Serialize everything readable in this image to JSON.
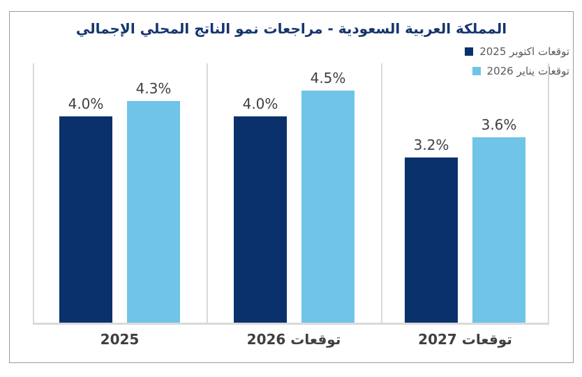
{
  "chart_data": {
    "type": "bar",
    "title": "المملكة العربية السعودية - مراجعات نمو الناتج المحلي الإجمالي",
    "categories": [
      "2025",
      "توقعات 2026",
      "توقعات 2027"
    ],
    "series": [
      {
        "name": "توقعات اكتوبر 2025",
        "color": "#0A316B",
        "values": [
          4.0,
          4.0,
          3.2
        ],
        "value_labels": [
          "4.0%",
          "4.0%",
          "3.2%"
        ]
      },
      {
        "name": "توقعات يناير 2026",
        "color": "#6FC4E8",
        "values": [
          4.3,
          4.5,
          3.6
        ],
        "value_labels": [
          "4.3%",
          "4.5%",
          "3.6%"
        ]
      }
    ],
    "xlabel": "",
    "ylabel": "",
    "ylim": [
      0,
      5
    ],
    "y_axis_ticks_visible": false,
    "grid": "vertical-group-separators",
    "legend_position": "top-right",
    "direction": "rtl",
    "colors": {
      "title": "#14356E",
      "value_label": "#3F3F3F",
      "category_label": "#3F3F3F",
      "legend_text": "#595959",
      "grid_line": "#D9D9D9",
      "border": "#9A9A9A",
      "background": "#FFFFFF"
    }
  }
}
